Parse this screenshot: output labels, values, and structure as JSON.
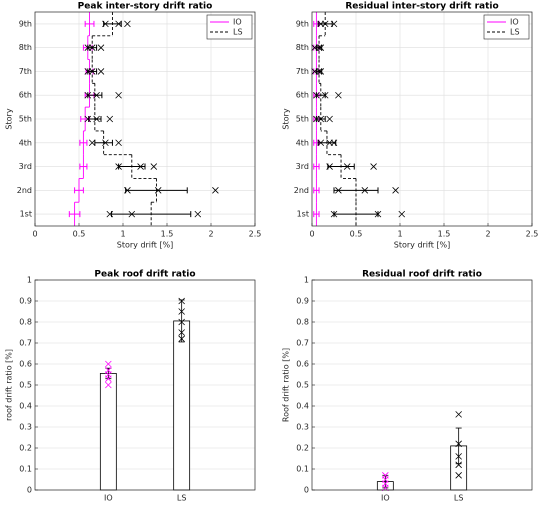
{
  "chart_data": [
    {
      "type": "step",
      "title": "Peak inter-story drift ratio",
      "xlabel": "Story drift [%]",
      "ylabel": "Story",
      "categories": [
        "1st",
        "2nd",
        "3rd",
        "4th",
        "5th",
        "6th",
        "7th",
        "8th",
        "9th"
      ],
      "xlim": [
        0,
        2.5
      ],
      "xticks": [
        0,
        0.5,
        1,
        1.5,
        2,
        2.5
      ],
      "grid": true,
      "legend": "northeast",
      "series": [
        {
          "name": "IO",
          "color": "#ff00ff",
          "linestyle": "solid",
          "values": [
            0.45,
            0.5,
            0.55,
            0.55,
            0.57,
            0.62,
            0.62,
            0.6,
            0.62
          ],
          "errors": [
            0.06,
            0.05,
            0.04,
            0.04,
            0.05,
            0.05,
            0.04,
            0.05,
            0.05
          ]
        },
        {
          "name": "LS",
          "color": "#000000",
          "linestyle": "dashed",
          "values": [
            1.32,
            1.38,
            1.1,
            0.78,
            0.68,
            0.68,
            0.65,
            0.65,
            0.88
          ],
          "errors": [
            0.45,
            0.35,
            0.15,
            0.1,
            0.07,
            0.08,
            0.05,
            0.05,
            0.1
          ],
          "points": [
            [
              0.85,
              1.1,
              1.85
            ],
            [
              1.05,
              1.4,
              2.05
            ],
            [
              0.95,
              1.2,
              1.35
            ],
            [
              0.65,
              0.8,
              0.95
            ],
            [
              0.6,
              0.7,
              0.85
            ],
            [
              0.6,
              0.7,
              0.95
            ],
            [
              0.6,
              0.65,
              0.75
            ],
            [
              0.6,
              0.65,
              0.75
            ],
            [
              0.8,
              0.95,
              1.05
            ]
          ]
        }
      ]
    },
    {
      "type": "step",
      "title": "Residual inter-story drift ratio",
      "xlabel": "Story drift [%]",
      "ylabel": "Story",
      "categories": [
        "1st",
        "2nd",
        "3rd",
        "4th",
        "5th",
        "6th",
        "7th",
        "8th",
        "9th"
      ],
      "xlim": [
        0,
        2.5
      ],
      "xticks": [
        0,
        0.5,
        1,
        1.5,
        2,
        2.5
      ],
      "grid": true,
      "legend": "northeast",
      "series": [
        {
          "name": "IO",
          "color": "#ff00ff",
          "linestyle": "solid",
          "values": [
            0.05,
            0.05,
            0.05,
            0.05,
            0.05,
            0.05,
            0.05,
            0.05,
            0.05
          ],
          "errors": [
            0.03,
            0.03,
            0.03,
            0.03,
            0.03,
            0.03,
            0.03,
            0.03,
            0.03
          ]
        },
        {
          "name": "LS",
          "color": "#000000",
          "linestyle": "dashed",
          "values": [
            0.5,
            0.5,
            0.33,
            0.17,
            0.1,
            0.1,
            0.08,
            0.08,
            0.15
          ],
          "errors": [
            0.25,
            0.25,
            0.15,
            0.1,
            0.05,
            0.05,
            0.03,
            0.03,
            0.08
          ],
          "points": [
            [
              0.25,
              0.75,
              1.02
            ],
            [
              0.3,
              0.6,
              0.95
            ],
            [
              0.2,
              0.4,
              0.7
            ],
            [
              0.1,
              0.2,
              0.25
            ],
            [
              0.05,
              0.1,
              0.2
            ],
            [
              0.05,
              0.15,
              0.3
            ],
            [
              0.03,
              0.08,
              0.1
            ],
            [
              0.03,
              0.08,
              0.1
            ],
            [
              0.1,
              0.15,
              0.25
            ]
          ]
        }
      ]
    },
    {
      "type": "bar",
      "title": "Peak roof drift ratio",
      "ylabel": "roof drift ratio [%]",
      "categories": [
        "IO",
        "LS"
      ],
      "values": [
        0.555,
        0.805
      ],
      "errors": [
        0.025,
        0.1
      ],
      "colors": [
        "#ff00ff",
        "#000000"
      ],
      "points": [
        [
          0.5,
          0.53,
          0.55,
          0.57,
          0.6
        ],
        [
          0.72,
          0.75,
          0.8,
          0.85,
          0.9
        ]
      ],
      "ylim": [
        0,
        1
      ],
      "yticks": [
        0,
        0.1,
        0.2,
        0.3,
        0.4,
        0.5,
        0.6,
        0.7,
        0.8,
        0.9,
        1
      ],
      "grid": true
    },
    {
      "type": "bar",
      "title": "Residual roof drift ratio",
      "ylabel": "Roof drift ratio [%]",
      "categories": [
        "IO",
        "LS"
      ],
      "values": [
        0.04,
        0.21
      ],
      "errors": [
        0.03,
        0.085
      ],
      "colors": [
        "#ff00ff",
        "#000000"
      ],
      "points": [
        [
          0.01,
          0.03,
          0.05,
          0.07
        ],
        [
          0.07,
          0.12,
          0.16,
          0.22,
          0.36
        ]
      ],
      "ylim": [
        0,
        1
      ],
      "yticks": [
        0,
        0.1,
        0.2,
        0.3,
        0.4,
        0.5,
        0.6,
        0.7,
        0.8,
        0.9,
        1
      ],
      "grid": true
    }
  ]
}
